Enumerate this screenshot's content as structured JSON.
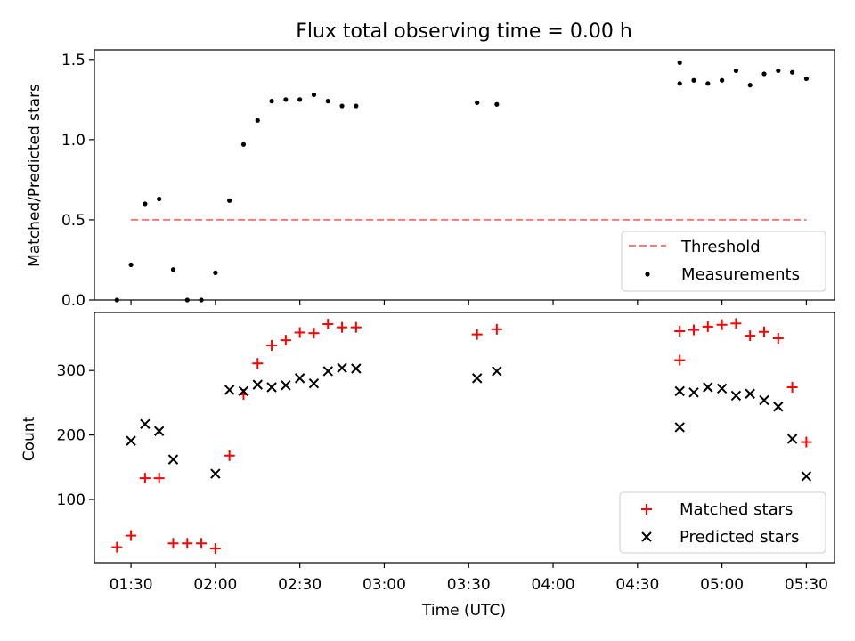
{
  "chart_data": [
    {
      "type": "scatter",
      "title": "Flux total observing time = 0.00 h",
      "xlabel": "",
      "ylabel": "Matched/Predicted stars",
      "xlim": [
        "01:17",
        "05:40"
      ],
      "ylim": [
        0,
        1.56
      ],
      "yticks": [
        0.0,
        0.5,
        1.0,
        1.5
      ],
      "ytick_labels": [
        "0.0",
        "0.5",
        "1.0",
        "1.5"
      ],
      "threshold": {
        "name": "Threshold",
        "value": 0.5,
        "x_start": "01:30",
        "x_end": "05:30",
        "color": "#ff7777"
      },
      "series": [
        {
          "name": "Measurements",
          "marker": "dot",
          "color": "#000000",
          "x": [
            "01:25",
            "01:30",
            "01:35",
            "01:40",
            "01:45",
            "01:50",
            "01:55",
            "02:00",
            "02:05",
            "02:10",
            "02:15",
            "02:20",
            "02:25",
            "02:30",
            "02:35",
            "02:40",
            "02:45",
            "02:50",
            "03:33",
            "03:40",
            "04:45",
            "04:45",
            "04:50",
            "04:55",
            "05:00",
            "05:05",
            "05:10",
            "05:15",
            "05:20",
            "05:25",
            "05:30"
          ],
          "y": [
            0.0,
            0.22,
            0.6,
            0.63,
            0.19,
            0.0,
            0.0,
            0.17,
            0.62,
            0.97,
            1.12,
            1.24,
            1.25,
            1.25,
            1.28,
            1.24,
            1.21,
            1.21,
            1.23,
            1.22,
            1.35,
            1.48,
            1.37,
            1.35,
            1.37,
            1.43,
            1.34,
            1.41,
            1.43,
            1.42,
            1.38
          ]
        }
      ],
      "legend": {
        "placement": "lower-right",
        "entries": [
          "Threshold",
          "Measurements"
        ]
      },
      "grid": false
    },
    {
      "type": "scatter",
      "title": "",
      "xlabel": "Time (UTC)",
      "ylabel": "Count",
      "xlim": [
        "01:17",
        "05:40"
      ],
      "ylim": [
        2,
        390
      ],
      "yticks": [
        100,
        200,
        300
      ],
      "ytick_labels": [
        "100",
        "200",
        "300"
      ],
      "xticks": [
        "01:30",
        "02:00",
        "02:30",
        "03:00",
        "03:30",
        "04:00",
        "04:30",
        "05:00",
        "05:30"
      ],
      "series": [
        {
          "name": "Matched stars",
          "marker": "plus",
          "color": "#ff0000",
          "x": [
            "01:25",
            "01:30",
            "01:35",
            "01:40",
            "01:45",
            "01:50",
            "01:55",
            "02:00",
            "02:05",
            "02:10",
            "02:15",
            "02:20",
            "02:25",
            "02:30",
            "02:35",
            "02:40",
            "02:45",
            "02:50",
            "03:33",
            "03:40",
            "04:45",
            "04:45",
            "04:50",
            "04:55",
            "05:00",
            "05:05",
            "05:10",
            "05:15",
            "05:20",
            "05:25",
            "05:30"
          ],
          "y": [
            26,
            44,
            133,
            133,
            32,
            32,
            32,
            24,
            168,
            263,
            311,
            339,
            347,
            359,
            358,
            372,
            367,
            367,
            356,
            364,
            316,
            361,
            363,
            368,
            371,
            373,
            354,
            360,
            350,
            274,
            189
          ]
        },
        {
          "name": "Predicted stars",
          "marker": "x",
          "color": "#000000",
          "x": [
            "01:30",
            "01:35",
            "01:40",
            "01:45",
            "02:00",
            "02:05",
            "02:10",
            "02:15",
            "02:20",
            "02:25",
            "02:30",
            "02:35",
            "02:40",
            "02:45",
            "02:50",
            "03:33",
            "03:40",
            "04:45",
            "04:45",
            "04:50",
            "04:55",
            "05:00",
            "05:05",
            "05:10",
            "05:15",
            "05:20",
            "05:25",
            "05:30"
          ],
          "y": [
            191,
            217,
            206,
            162,
            140,
            270,
            268,
            278,
            274,
            277,
            288,
            280,
            299,
            304,
            303,
            288,
            299,
            212,
            268,
            266,
            274,
            272,
            261,
            264,
            254,
            244,
            194,
            136
          ]
        }
      ],
      "legend": {
        "placement": "lower-right",
        "entries": [
          "Matched stars",
          "Predicted stars"
        ]
      },
      "grid": false
    }
  ]
}
